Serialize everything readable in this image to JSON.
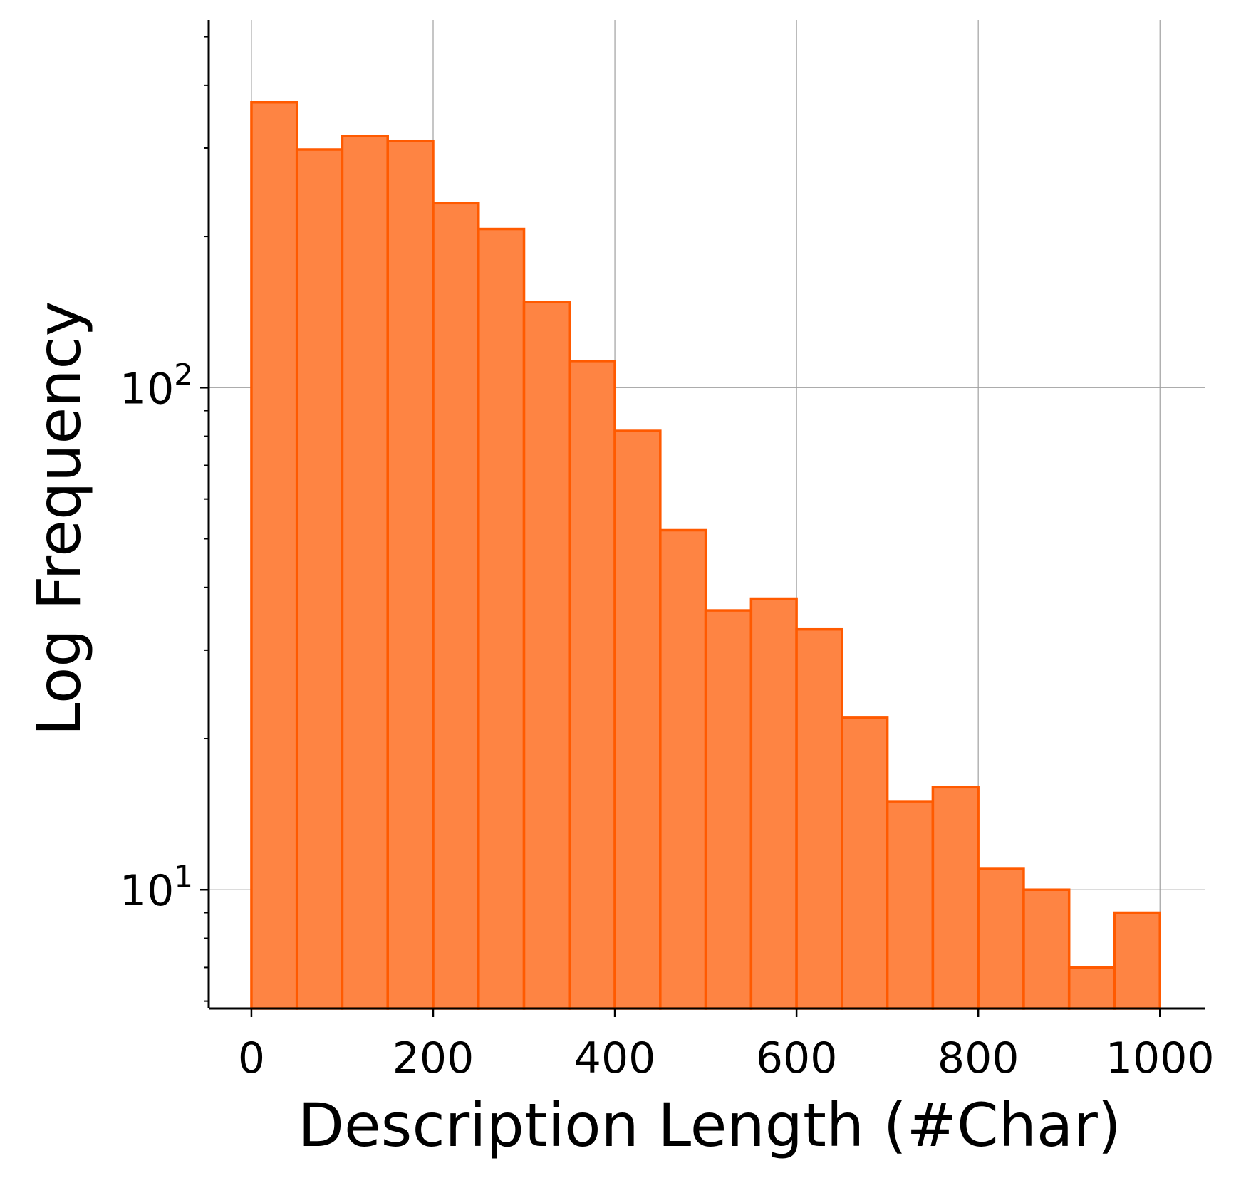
{
  "chart_data": {
    "type": "bar",
    "xlabel": "Description Length (#Char)",
    "ylabel": "Log Frequency",
    "yscale": "log",
    "grid": true,
    "xlim": [
      -47,
      1050
    ],
    "ylim": [
      5.8,
      540
    ],
    "xticks": [
      0,
      200,
      400,
      600,
      800,
      1000
    ],
    "yticks": [
      {
        "value": 10,
        "base": "10",
        "exponent": "1"
      },
      {
        "value": 100,
        "base": "10",
        "exponent": "2"
      }
    ],
    "bin_width": 50,
    "bins": [
      {
        "start": 0,
        "end": 50,
        "count": 370
      },
      {
        "start": 50,
        "end": 100,
        "count": 298
      },
      {
        "start": 100,
        "end": 150,
        "count": 317
      },
      {
        "start": 150,
        "end": 200,
        "count": 310
      },
      {
        "start": 200,
        "end": 250,
        "count": 233
      },
      {
        "start": 250,
        "end": 300,
        "count": 207
      },
      {
        "start": 300,
        "end": 350,
        "count": 148
      },
      {
        "start": 350,
        "end": 400,
        "count": 113
      },
      {
        "start": 400,
        "end": 450,
        "count": 82
      },
      {
        "start": 450,
        "end": 500,
        "count": 52
      },
      {
        "start": 500,
        "end": 550,
        "count": 36
      },
      {
        "start": 550,
        "end": 600,
        "count": 38
      },
      {
        "start": 600,
        "end": 650,
        "count": 33
      },
      {
        "start": 650,
        "end": 700,
        "count": 22
      },
      {
        "start": 700,
        "end": 750,
        "count": 15
      },
      {
        "start": 750,
        "end": 800,
        "count": 16
      },
      {
        "start": 800,
        "end": 850,
        "count": 11
      },
      {
        "start": 850,
        "end": 900,
        "count": 10
      },
      {
        "start": 900,
        "end": 950,
        "count": 7
      },
      {
        "start": 950,
        "end": 1000,
        "count": 9
      }
    ],
    "colors": {
      "bar_fill": "#fe8443",
      "bar_edge": "#ff5a00",
      "grid": "#a0a0a0",
      "axis": "#000000"
    }
  }
}
